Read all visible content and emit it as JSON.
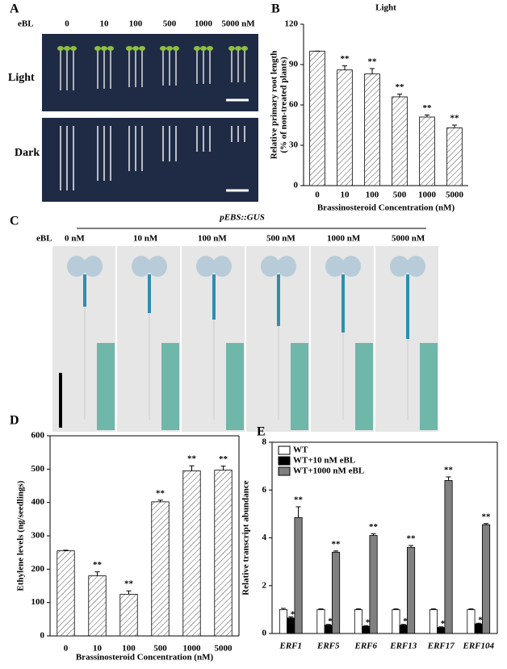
{
  "chart_data": [
    {
      "type": "bar",
      "panel_label": "B",
      "title": "Light",
      "ylabel": [
        "Relative primary root length",
        "(% of non-treated plants)"
      ],
      "xlabel": "Brassinosteroid Concentration (nM)",
      "categories": [
        "0",
        "10",
        "100",
        "500",
        "1000",
        "5000"
      ],
      "values": [
        100,
        86,
        83,
        66,
        51,
        43
      ],
      "errors": [
        0,
        3,
        4,
        2,
        1.5,
        2
      ],
      "significance": [
        null,
        "**",
        "**",
        "**",
        "**",
        "**"
      ],
      "color": "#ffffff",
      "pattern": "hatch",
      "ylim": [
        0,
        120
      ],
      "yticks": [
        0,
        30,
        60,
        90,
        120
      ]
    },
    {
      "type": "bar",
      "panel_label": "D",
      "ylabel": [
        "Ethylene levels (ng/seedlings)"
      ],
      "xlabel": "Brassinosteroid Concentration (nM)",
      "categories": [
        "0",
        "10",
        "100",
        "500",
        "1000",
        "5000"
      ],
      "values": [
        255,
        180,
        125,
        402,
        495,
        497
      ],
      "errors": [
        2,
        12,
        10,
        5,
        15,
        12
      ],
      "significance": [
        null,
        "**",
        "**",
        "**",
        "**",
        "**"
      ],
      "color": "#ffffff",
      "pattern": "hatch",
      "ylim": [
        0,
        600
      ],
      "yticks": [
        0,
        100,
        200,
        300,
        400,
        500,
        600
      ]
    },
    {
      "type": "bar",
      "panel_label": "E",
      "ylabel": [
        "Relative transcript abundance"
      ],
      "categories": [
        "ERF1",
        "ERF5",
        "ERF6",
        "ERF13",
        "ERF17",
        "ERF104"
      ],
      "series": [
        {
          "name": "WT",
          "color": "#ffffff",
          "values": [
            1.0,
            1.0,
            1.0,
            1.0,
            1.0,
            1.0
          ],
          "errors": [
            0.05,
            0.03,
            0.03,
            0.03,
            0.03,
            0.03
          ],
          "significance": [
            null,
            null,
            null,
            null,
            null,
            null
          ]
        },
        {
          "name": "WT+10 nM eBL",
          "color": "#000000",
          "values": [
            0.65,
            0.35,
            0.3,
            0.35,
            0.25,
            0.4
          ],
          "errors": [
            0.05,
            0.03,
            0.03,
            0.03,
            0.03,
            0.03
          ],
          "significance": [
            "**",
            "**",
            "**",
            "**",
            "**",
            "**"
          ]
        },
        {
          "name": "WT+1000 nM eBL",
          "color": "#808080",
          "values": [
            4.85,
            3.4,
            4.1,
            3.6,
            6.4,
            4.55
          ],
          "errors": [
            0.45,
            0.05,
            0.07,
            0.08,
            0.15,
            0.05
          ],
          "significance": [
            "**",
            "**",
            "**",
            "**",
            "**",
            "**"
          ]
        }
      ],
      "legend": "upper left",
      "ylim": [
        0,
        8
      ],
      "yticks": [
        0,
        2,
        4,
        6,
        8
      ]
    }
  ],
  "photos_a": {
    "panel_label": "A",
    "treatment_label": "eBL",
    "concentrations": [
      "0",
      "10",
      "100",
      "500",
      "1000",
      "5000 nM"
    ],
    "rows": [
      "Light",
      "Dark"
    ]
  },
  "photos_c": {
    "panel_label": "C",
    "construct": "pEBS::GUS",
    "treatment_label": "eBL",
    "concentrations": [
      "0 nM",
      "10 nM",
      "100 nM",
      "500 nM",
      "1000 nM",
      "5000 nM"
    ]
  }
}
